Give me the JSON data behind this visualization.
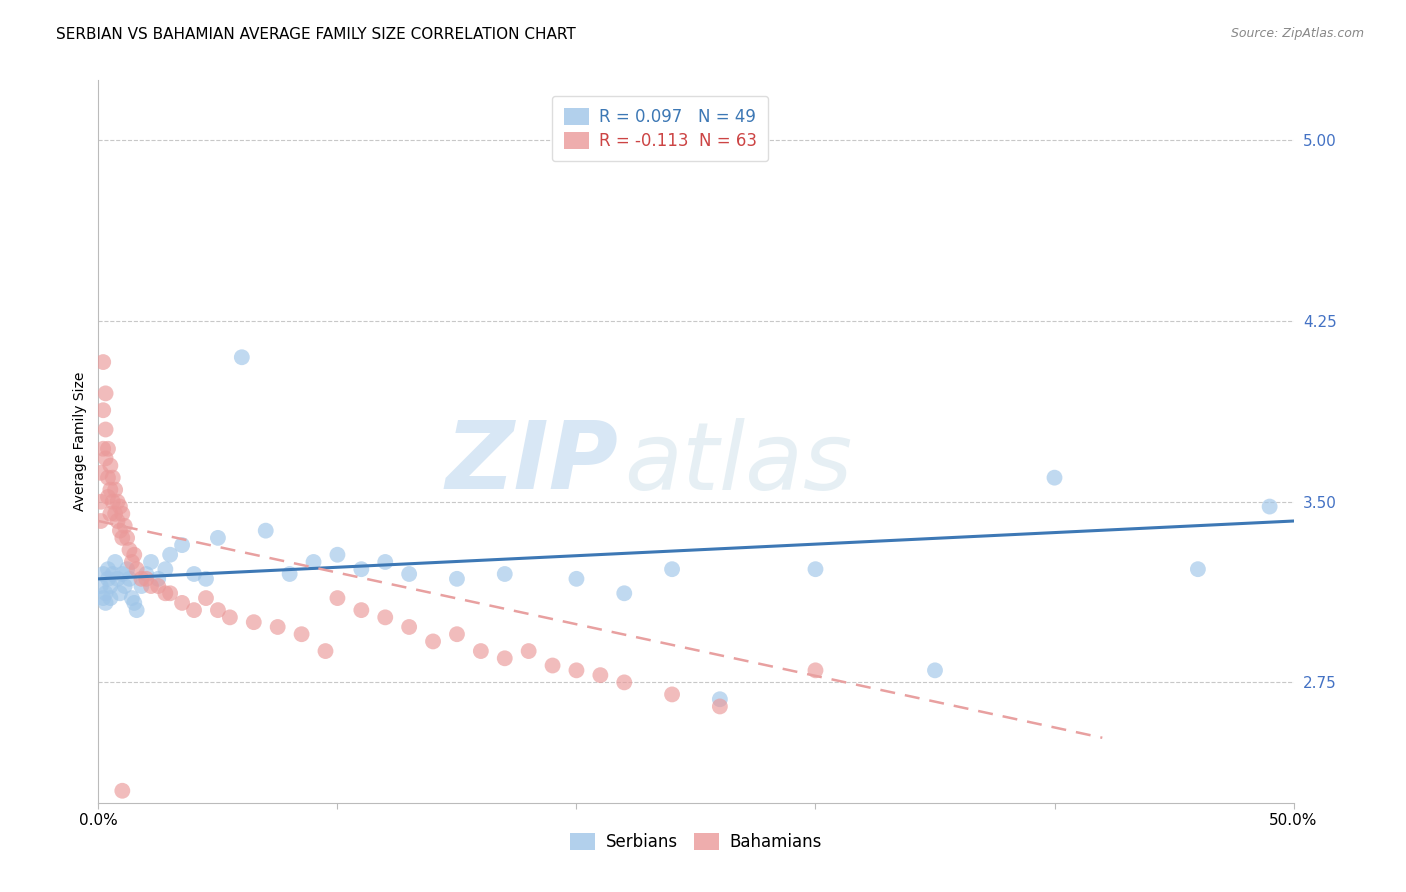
{
  "title": "SERBIAN VS BAHAMIAN AVERAGE FAMILY SIZE CORRELATION CHART",
  "source": "Source: ZipAtlas.com",
  "ylabel": "Average Family Size",
  "xlim": [
    0.0,
    0.5
  ],
  "ylim": [
    2.25,
    5.25
  ],
  "yticks": [
    2.75,
    3.5,
    4.25,
    5.0
  ],
  "xticks": [
    0.0,
    0.1,
    0.2,
    0.3,
    0.4,
    0.5
  ],
  "xticklabels": [
    "0.0%",
    "",
    "",
    "",
    "",
    "50.0%"
  ],
  "background_color": "#ffffff",
  "grid_color": "#c8c8c8",
  "watermark_zip": "ZIP",
  "watermark_atlas": "atlas",
  "serbian_color": "#9fc5e8",
  "bahamian_color": "#ea9999",
  "serbian_line_color": "#3d78b5",
  "bahamian_line_color": "#cc4444",
  "bahamian_trend_color": "#e8a0a0",
  "serbian_trend_x": [
    0.0,
    0.5
  ],
  "serbian_trend_y": [
    3.18,
    3.42
  ],
  "bahamian_trend_x": [
    0.0,
    0.42
  ],
  "bahamian_trend_y": [
    3.42,
    2.52
  ],
  "marker_size": 130,
  "marker_alpha": 0.65,
  "title_fontsize": 11,
  "axis_label_fontsize": 10,
  "tick_fontsize": 11,
  "ytick_color": "#4472c4",
  "xtick_color": "#000000",
  "legend_serbian": "R = 0.097   N = 49",
  "legend_bahamian": "R = -0.113  N = 63",
  "serbian_scatter_x": [
    0.001,
    0.002,
    0.002,
    0.003,
    0.003,
    0.004,
    0.004,
    0.005,
    0.005,
    0.006,
    0.007,
    0.008,
    0.009,
    0.01,
    0.011,
    0.012,
    0.013,
    0.014,
    0.015,
    0.016,
    0.018,
    0.02,
    0.022,
    0.025,
    0.028,
    0.03,
    0.035,
    0.04,
    0.045,
    0.05,
    0.06,
    0.07,
    0.08,
    0.09,
    0.1,
    0.11,
    0.12,
    0.13,
    0.15,
    0.17,
    0.2,
    0.22,
    0.24,
    0.26,
    0.3,
    0.35,
    0.4,
    0.46,
    0.49
  ],
  "serbian_scatter_y": [
    3.15,
    3.2,
    3.1,
    3.12,
    3.08,
    3.18,
    3.22,
    3.15,
    3.1,
    3.2,
    3.25,
    3.18,
    3.12,
    3.2,
    3.15,
    3.22,
    3.18,
    3.1,
    3.08,
    3.05,
    3.15,
    3.2,
    3.25,
    3.18,
    3.22,
    3.28,
    3.32,
    3.2,
    3.18,
    3.35,
    4.1,
    3.38,
    3.2,
    3.25,
    3.28,
    3.22,
    3.25,
    3.2,
    3.18,
    3.2,
    3.18,
    3.12,
    3.22,
    2.68,
    3.22,
    2.8,
    3.6,
    3.22,
    3.48
  ],
  "bahamian_scatter_x": [
    0.001,
    0.001,
    0.001,
    0.002,
    0.002,
    0.002,
    0.003,
    0.003,
    0.003,
    0.004,
    0.004,
    0.004,
    0.005,
    0.005,
    0.005,
    0.006,
    0.006,
    0.007,
    0.007,
    0.008,
    0.008,
    0.009,
    0.009,
    0.01,
    0.01,
    0.011,
    0.012,
    0.013,
    0.014,
    0.015,
    0.016,
    0.018,
    0.02,
    0.022,
    0.025,
    0.028,
    0.03,
    0.035,
    0.04,
    0.045,
    0.05,
    0.055,
    0.065,
    0.075,
    0.085,
    0.095,
    0.1,
    0.11,
    0.12,
    0.13,
    0.14,
    0.15,
    0.16,
    0.17,
    0.18,
    0.19,
    0.2,
    0.21,
    0.22,
    0.24,
    0.26,
    0.3,
    0.01
  ],
  "bahamian_scatter_y": [
    3.5,
    3.42,
    3.62,
    4.08,
    3.88,
    3.72,
    3.95,
    3.8,
    3.68,
    3.72,
    3.6,
    3.52,
    3.65,
    3.55,
    3.45,
    3.6,
    3.5,
    3.55,
    3.45,
    3.5,
    3.42,
    3.48,
    3.38,
    3.45,
    3.35,
    3.4,
    3.35,
    3.3,
    3.25,
    3.28,
    3.22,
    3.18,
    3.18,
    3.15,
    3.15,
    3.12,
    3.12,
    3.08,
    3.05,
    3.1,
    3.05,
    3.02,
    3.0,
    2.98,
    2.95,
    2.88,
    3.1,
    3.05,
    3.02,
    2.98,
    2.92,
    2.95,
    2.88,
    2.85,
    2.88,
    2.82,
    2.8,
    2.78,
    2.75,
    2.7,
    2.65,
    2.8,
    2.3
  ]
}
